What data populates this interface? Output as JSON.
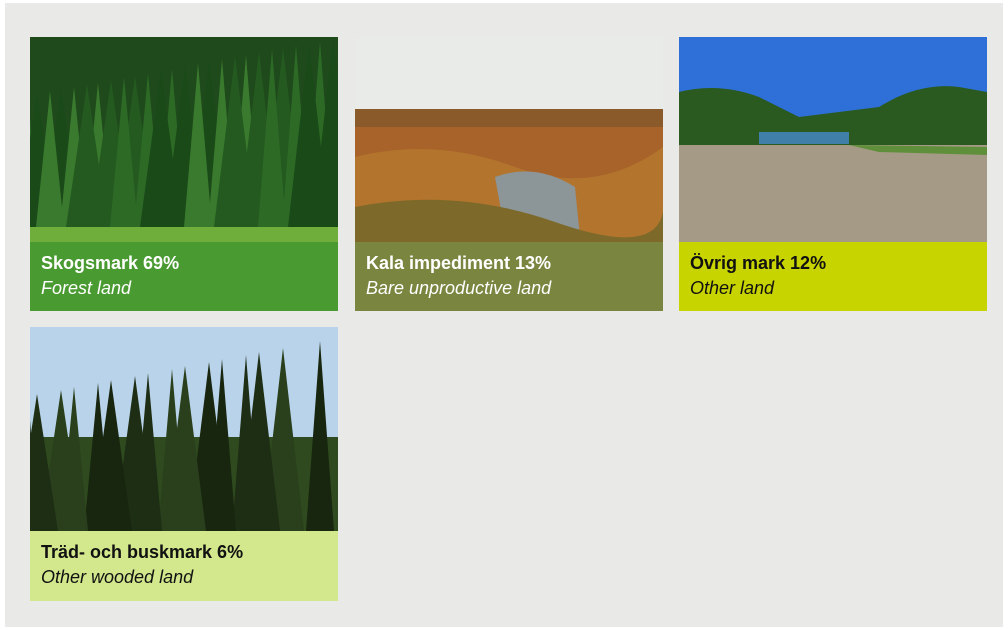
{
  "cards": [
    {
      "title": "Skogsmark 69%",
      "subtitle": "Forest land"
    },
    {
      "title": "Kala impediment 13%",
      "subtitle": "Bare unproductive land"
    },
    {
      "title": "Övrig mark 12%",
      "subtitle": "Other land"
    },
    {
      "title": "Träd- och buskmark 6%",
      "subtitle": "Other wooded land"
    }
  ]
}
